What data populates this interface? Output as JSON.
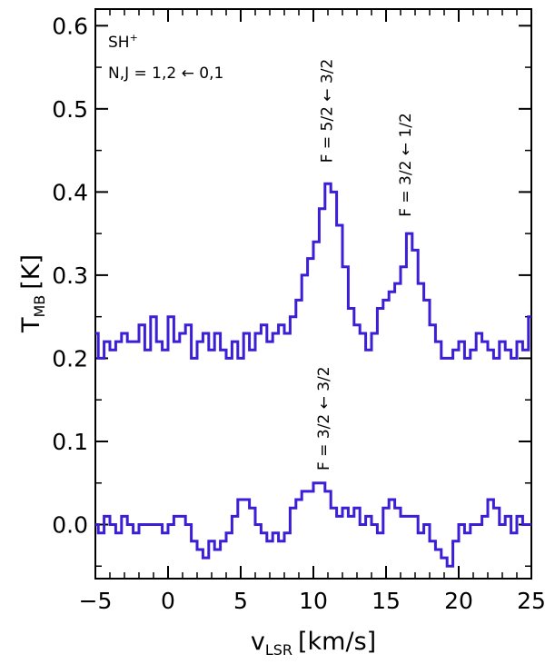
{
  "chart_data": {
    "type": "line",
    "style": "step",
    "line_color": "#3a1fd6",
    "xlabel": {
      "main": "v",
      "sub": "LSR",
      "unit": "[km/s]"
    },
    "ylabel": {
      "main": "T",
      "sub": "MB",
      "unit": "[K]"
    },
    "xlim": [
      -5,
      25
    ],
    "ylim": [
      -0.065,
      0.62
    ],
    "x_major_ticks": [
      -5,
      0,
      5,
      10,
      15,
      20,
      25
    ],
    "x_tick_labels": [
      "−5",
      "0",
      "5",
      "10",
      "15",
      "20",
      "25"
    ],
    "y_major_ticks": [
      0.0,
      0.1,
      0.2,
      0.3,
      0.4,
      0.5,
      0.6
    ],
    "y_tick_labels": [
      "0.0",
      "0.1",
      "0.2",
      "0.3",
      "0.4",
      "0.5",
      "0.6"
    ],
    "grid": false,
    "annotations": {
      "species": "SH",
      "species_sup": "+",
      "transition": "N,J = 1,2 ← 0,1"
    },
    "line_labels": [
      {
        "text": "F = 5/2 ← 3/2",
        "x": 10.9,
        "y": 0.435
      },
      {
        "text": "F = 3/2 ← 1/2",
        "x": 16.3,
        "y": 0.37
      },
      {
        "text": "F = 3/2 ← 3/2",
        "x": 10.7,
        "y": 0.065
      }
    ],
    "series": [
      {
        "x": [
          -5.0,
          -4.6,
          -4.2,
          -3.8,
          -3.4,
          -3.0,
          -2.6,
          -2.2,
          -1.8,
          -1.4,
          -1.0,
          -0.6,
          -0.2,
          0.2,
          0.6,
          1.0,
          1.4,
          1.8,
          2.2,
          2.6,
          3.0,
          3.4,
          3.8,
          4.2,
          4.6,
          5.0,
          5.4,
          5.8,
          6.2,
          6.6,
          7.0,
          7.4,
          7.8,
          8.2,
          8.6,
          9.0,
          9.4,
          9.8,
          10.2,
          10.6,
          11.0,
          11.4,
          11.8,
          12.2,
          12.6,
          13.0,
          13.4,
          13.8,
          14.2,
          14.6,
          15.0,
          15.4,
          15.8,
          16.2,
          16.6,
          17.0,
          17.4,
          17.8,
          18.2,
          18.6,
          19.0,
          19.4,
          19.8,
          20.2,
          20.6,
          21.0,
          21.4,
          21.8,
          22.2,
          22.6,
          23.0,
          23.4,
          23.8,
          24.2,
          24.6,
          25.0
        ],
        "values": [
          0.23,
          0.2,
          0.22,
          0.21,
          0.22,
          0.23,
          0.22,
          0.22,
          0.24,
          0.21,
          0.25,
          0.22,
          0.21,
          0.25,
          0.22,
          0.23,
          0.24,
          0.2,
          0.22,
          0.23,
          0.21,
          0.23,
          0.21,
          0.2,
          0.22,
          0.2,
          0.23,
          0.21,
          0.23,
          0.24,
          0.22,
          0.23,
          0.24,
          0.23,
          0.25,
          0.27,
          0.3,
          0.32,
          0.34,
          0.38,
          0.41,
          0.4,
          0.36,
          0.31,
          0.26,
          0.24,
          0.23,
          0.21,
          0.23,
          0.26,
          0.27,
          0.28,
          0.29,
          0.31,
          0.35,
          0.33,
          0.29,
          0.27,
          0.24,
          0.22,
          0.2,
          0.2,
          0.21,
          0.22,
          0.2,
          0.21,
          0.23,
          0.22,
          0.21,
          0.2,
          0.22,
          0.21,
          0.2,
          0.22,
          0.21,
          0.25
        ]
      },
      {
        "x": [
          -5.0,
          -4.6,
          -4.2,
          -3.8,
          -3.4,
          -3.0,
          -2.6,
          -2.2,
          -1.8,
          -1.4,
          -1.0,
          -0.6,
          -0.2,
          0.2,
          0.6,
          1.0,
          1.4,
          1.8,
          2.2,
          2.6,
          3.0,
          3.4,
          3.8,
          4.2,
          4.6,
          5.0,
          5.4,
          5.8,
          6.2,
          6.6,
          7.0,
          7.4,
          7.8,
          8.2,
          8.6,
          9.0,
          9.4,
          9.8,
          10.2,
          10.6,
          11.0,
          11.4,
          11.8,
          12.2,
          12.6,
          13.0,
          13.4,
          13.8,
          14.2,
          14.6,
          15.0,
          15.4,
          15.8,
          16.2,
          16.6,
          17.0,
          17.4,
          17.8,
          18.2,
          18.6,
          19.0,
          19.4,
          19.8,
          20.2,
          20.6,
          21.0,
          21.4,
          21.8,
          22.2,
          22.6,
          23.0,
          23.4,
          23.8,
          24.2,
          24.6,
          25.0
        ],
        "values": [
          0.0,
          -0.01,
          0.01,
          0.0,
          -0.01,
          0.01,
          0.0,
          -0.01,
          0.0,
          0.0,
          0.0,
          0.0,
          -0.01,
          0.0,
          0.01,
          0.01,
          0.0,
          -0.02,
          -0.03,
          -0.04,
          -0.02,
          -0.03,
          -0.02,
          -0.01,
          0.01,
          0.03,
          0.03,
          0.02,
          0.0,
          -0.01,
          -0.02,
          -0.01,
          -0.02,
          -0.01,
          0.02,
          0.03,
          0.04,
          0.04,
          0.05,
          0.05,
          0.04,
          0.02,
          0.01,
          0.02,
          0.01,
          0.02,
          0.0,
          0.01,
          0.0,
          -0.01,
          0.02,
          0.03,
          0.02,
          0.01,
          0.01,
          0.01,
          -0.01,
          0.0,
          -0.02,
          -0.03,
          -0.04,
          -0.05,
          -0.02,
          0.0,
          -0.01,
          0.0,
          0.0,
          0.01,
          0.03,
          0.02,
          0.0,
          0.01,
          -0.01,
          0.01,
          0.0,
          0.0
        ]
      }
    ]
  }
}
